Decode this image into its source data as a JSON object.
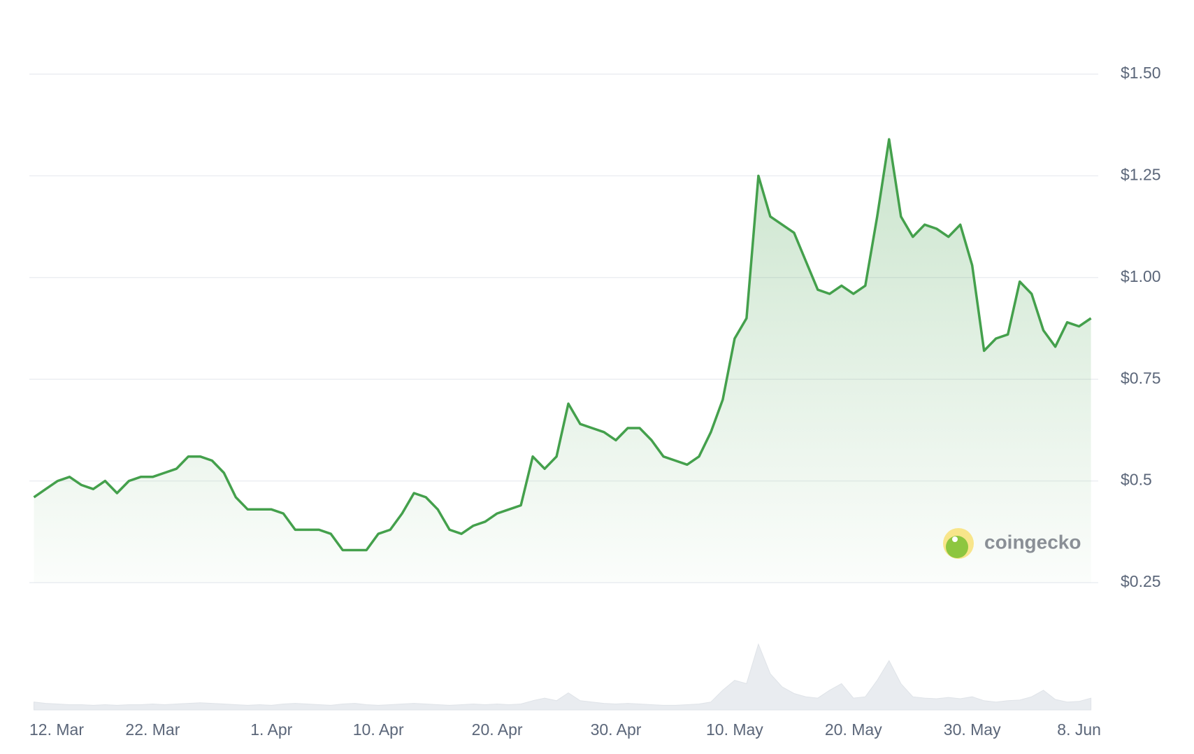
{
  "chart_data": {
    "type": "line",
    "categories": [
      "12. Mar",
      null,
      null,
      null,
      null,
      null,
      null,
      null,
      null,
      null,
      "22. Mar",
      null,
      null,
      null,
      null,
      null,
      null,
      null,
      null,
      null,
      "1. Apr",
      null,
      null,
      null,
      null,
      null,
      null,
      null,
      null,
      "10. Apr",
      null,
      null,
      null,
      null,
      null,
      null,
      null,
      null,
      null,
      "20. Apr",
      null,
      null,
      null,
      null,
      null,
      null,
      null,
      null,
      null,
      "30. Apr",
      null,
      null,
      null,
      null,
      null,
      null,
      null,
      null,
      null,
      "10. May",
      null,
      null,
      null,
      null,
      null,
      null,
      null,
      null,
      null,
      "20. May",
      null,
      null,
      null,
      null,
      null,
      null,
      null,
      null,
      null,
      "30. May",
      null,
      null,
      null,
      null,
      null,
      null,
      null,
      null,
      "8. Jun",
      null
    ],
    "series": [
      {
        "color": "#44a04c",
        "values": [
          0.46,
          0.48,
          0.5,
          0.51,
          0.49,
          0.48,
          0.5,
          0.47,
          0.5,
          0.51,
          0.51,
          0.52,
          0.53,
          0.56,
          0.56,
          0.55,
          0.52,
          0.46,
          0.43,
          0.43,
          0.43,
          0.42,
          0.38,
          0.38,
          0.38,
          0.37,
          0.33,
          0.33,
          0.33,
          0.37,
          0.38,
          0.42,
          0.47,
          0.46,
          0.43,
          0.38,
          0.37,
          0.39,
          0.4,
          0.42,
          0.43,
          0.44,
          0.56,
          0.53,
          0.56,
          0.69,
          0.64,
          0.63,
          0.62,
          0.6,
          0.63,
          0.63,
          0.6,
          0.56,
          0.55,
          0.54,
          0.56,
          0.62,
          0.7,
          0.85,
          0.9,
          1.25,
          1.15,
          1.13,
          1.11,
          1.04,
          0.97,
          0.96,
          0.98,
          0.96,
          0.98,
          1.15,
          1.34,
          1.15,
          1.1,
          1.13,
          1.12,
          1.1,
          1.13,
          1.03,
          0.82,
          0.85,
          0.86,
          0.99,
          0.96,
          0.87,
          0.83,
          0.89,
          0.88,
          0.9
        ]
      }
    ],
    "volume": {
      "color": "#e9ecf0",
      "values": [
        12,
        10,
        9,
        8,
        8,
        7,
        8,
        7,
        8,
        8,
        9,
        8,
        9,
        10,
        11,
        10,
        9,
        8,
        7,
        8,
        7,
        9,
        10,
        9,
        8,
        7,
        9,
        10,
        8,
        7,
        8,
        9,
        10,
        9,
        8,
        7,
        8,
        9,
        8,
        9,
        8,
        9,
        14,
        18,
        14,
        26,
        14,
        12,
        10,
        9,
        10,
        9,
        8,
        7,
        7,
        8,
        9,
        12,
        30,
        45,
        40,
        100,
        55,
        35,
        25,
        20,
        18,
        30,
        40,
        18,
        20,
        45,
        75,
        40,
        20,
        18,
        17,
        19,
        17,
        20,
        14,
        12,
        14,
        15,
        20,
        30,
        16,
        12,
        13,
        18
      ]
    },
    "ylim": [
      0.25,
      1.5
    ],
    "yticks": [
      {
        "value": 1.5,
        "label": "$1.50"
      },
      {
        "value": 1.25,
        "label": "$1.25"
      },
      {
        "value": 1.0,
        "label": "$1.00"
      },
      {
        "value": 0.75,
        "label": "$0.75"
      },
      {
        "value": 0.5,
        "label": "$0.5"
      },
      {
        "value": 0.25,
        "label": "$0.25"
      }
    ],
    "grid": true,
    "watermark": "coingecko"
  }
}
